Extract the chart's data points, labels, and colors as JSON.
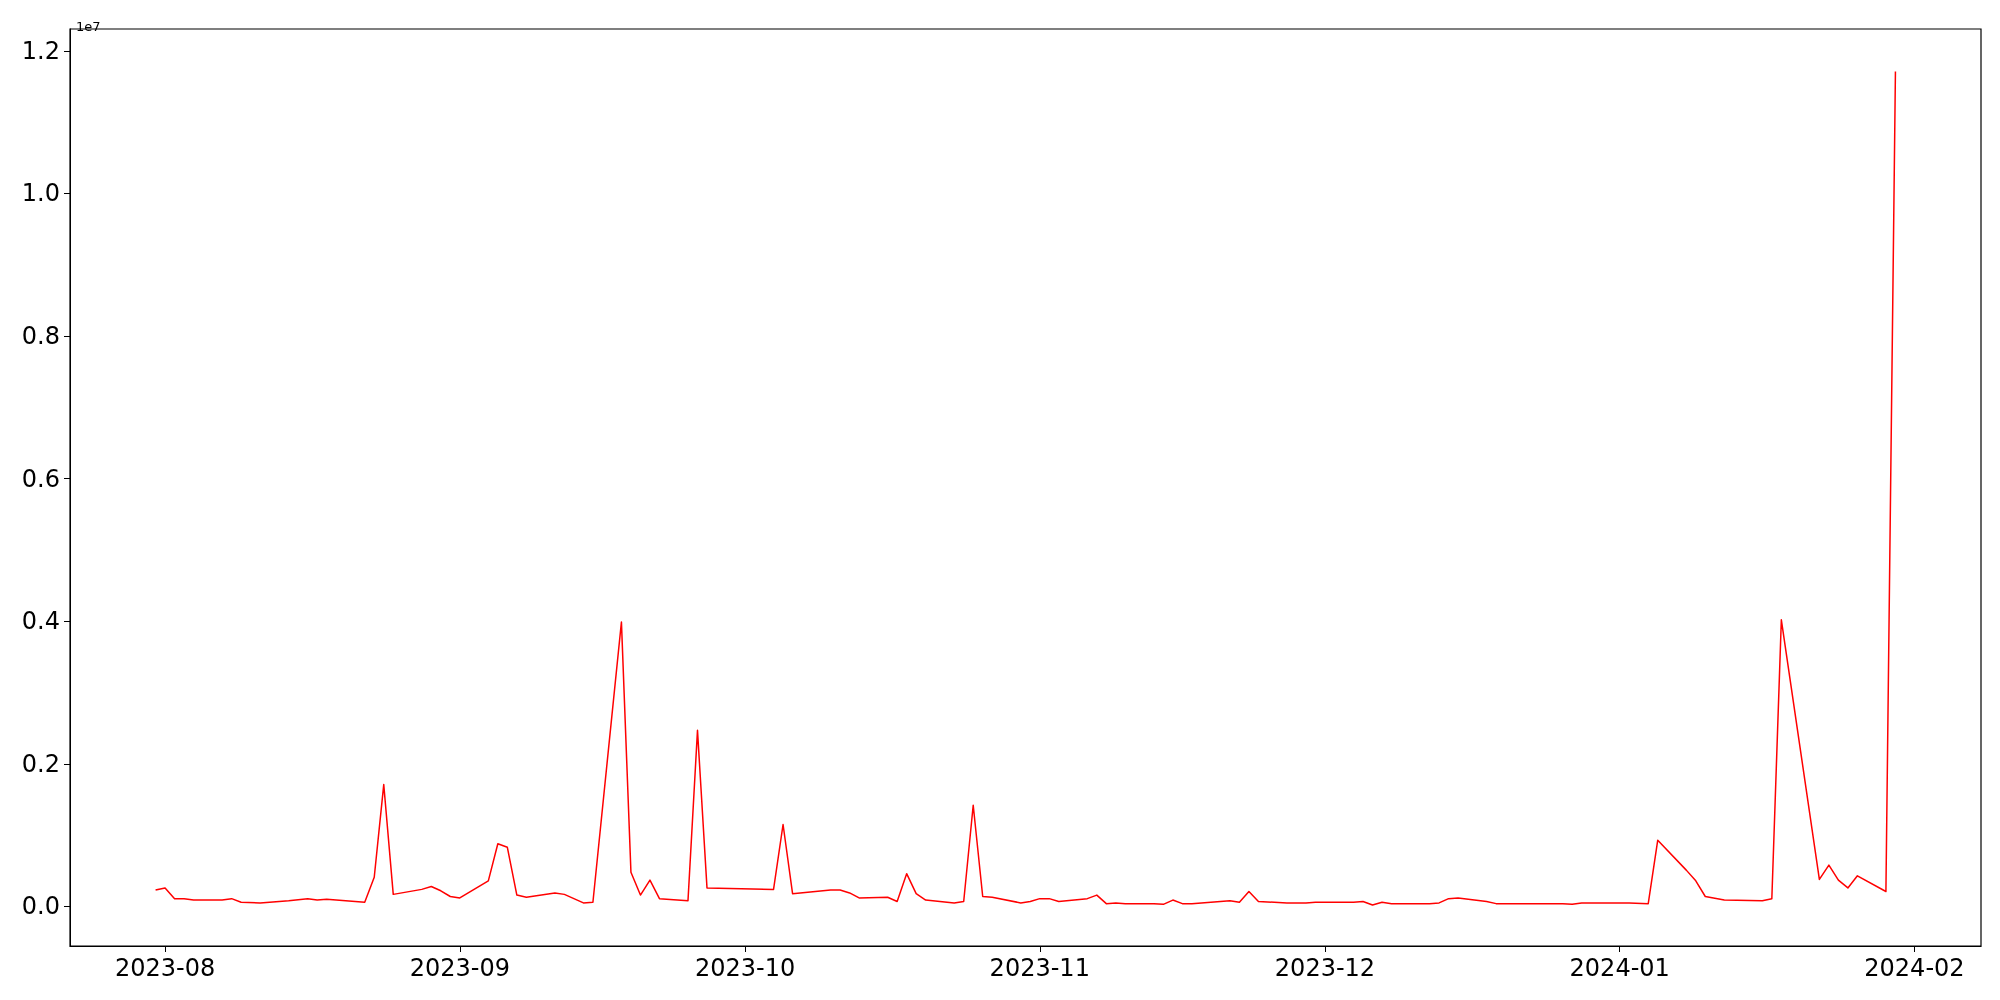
{
  "chart_data": {
    "type": "line",
    "annotations": [
      "1e7"
    ],
    "x": [
      "2023-07-31",
      "2023-08-01",
      "2023-08-02",
      "2023-08-03",
      "2023-08-04",
      "2023-08-07",
      "2023-08-08",
      "2023-08-09",
      "2023-08-11",
      "2023-08-14",
      "2023-08-16",
      "2023-08-17",
      "2023-08-18",
      "2023-08-22",
      "2023-08-23",
      "2023-08-24",
      "2023-08-25",
      "2023-08-28",
      "2023-08-29",
      "2023-08-30",
      "2023-08-31",
      "2023-09-01",
      "2023-09-04",
      "2023-09-05",
      "2023-09-06",
      "2023-09-07",
      "2023-09-08",
      "2023-09-11",
      "2023-09-12",
      "2023-09-14",
      "2023-09-15",
      "2023-09-18",
      "2023-09-19",
      "2023-09-20",
      "2023-09-21",
      "2023-09-22",
      "2023-09-25",
      "2023-09-26",
      "2023-09-27",
      "2023-10-04",
      "2023-10-05",
      "2023-10-06",
      "2023-10-10",
      "2023-10-11",
      "2023-10-12",
      "2023-10-13",
      "2023-10-16",
      "2023-10-17",
      "2023-10-18",
      "2023-10-19",
      "2023-10-20",
      "2023-10-23",
      "2023-10-24",
      "2023-10-25",
      "2023-10-26",
      "2023-10-27",
      "2023-10-30",
      "2023-10-31",
      "2023-11-01",
      "2023-11-02",
      "2023-11-03",
      "2023-11-06",
      "2023-11-07",
      "2023-11-08",
      "2023-11-09",
      "2023-11-10",
      "2023-11-13",
      "2023-11-14",
      "2023-11-15",
      "2023-11-16",
      "2023-11-17",
      "2023-11-20",
      "2023-11-21",
      "2023-11-22",
      "2023-11-23",
      "2023-11-24",
      "2023-11-27",
      "2023-11-29",
      "2023-11-30",
      "2023-12-04",
      "2023-12-05",
      "2023-12-06",
      "2023-12-07",
      "2023-12-08",
      "2023-12-11",
      "2023-12-12",
      "2023-12-13",
      "2023-12-14",
      "2023-12-15",
      "2023-12-18",
      "2023-12-19",
      "2023-12-20",
      "2023-12-21",
      "2023-12-22",
      "2023-12-26",
      "2023-12-27",
      "2023-12-28",
      "2023-12-29",
      "2024-01-02",
      "2024-01-04",
      "2024-01-05",
      "2024-01-08",
      "2024-01-09",
      "2024-01-10",
      "2024-01-12",
      "2024-01-16",
      "2024-01-17",
      "2024-01-18",
      "2024-01-22",
      "2024-01-23",
      "2024-01-24",
      "2024-01-25",
      "2024-01-26",
      "2024-01-29",
      "2024-01-30"
    ],
    "series": [
      {
        "color": "#ff0000",
        "values": [
          0.023,
          0.026,
          0.011,
          0.011,
          0.009,
          0.009,
          0.011,
          0.006,
          0.005,
          0.008,
          0.011,
          0.009,
          0.01,
          0.006,
          0.041,
          0.171,
          0.017,
          0.024,
          0.028,
          0.022,
          0.014,
          0.012,
          0.036,
          0.088,
          0.083,
          0.016,
          0.013,
          0.019,
          0.017,
          0.005,
          0.006,
          0.399,
          0.048,
          0.016,
          0.037,
          0.011,
          0.008,
          0.247,
          0.026,
          0.024,
          0.115,
          0.018,
          0.023,
          0.023,
          0.019,
          0.012,
          0.013,
          0.007,
          0.046,
          0.018,
          0.009,
          0.005,
          0.007,
          0.142,
          0.014,
          0.013,
          0.005,
          0.007,
          0.011,
          0.011,
          0.007,
          0.011,
          0.016,
          0.004,
          0.005,
          0.004,
          0.004,
          0.003,
          0.009,
          0.004,
          0.004,
          0.007,
          0.008,
          0.006,
          0.021,
          0.007,
          0.005,
          0.005,
          0.006,
          0.006,
          0.007,
          0.002,
          0.006,
          0.004,
          0.004,
          0.004,
          0.005,
          0.011,
          0.012,
          0.007,
          0.004,
          0.004,
          0.004,
          0.004,
          0.004,
          0.003,
          0.005,
          0.005,
          0.005,
          0.004,
          0.093,
          0.051,
          0.036,
          0.014,
          0.009,
          0.008,
          0.011,
          0.402,
          0.038,
          0.058,
          0.037,
          0.026,
          0.043,
          0.021,
          1.171
        ]
      }
    ],
    "xlim": [
      "2023-07-22",
      "2024-02-08"
    ],
    "xticks": [
      {
        "value": "2023-08-01",
        "label": "2023-08"
      },
      {
        "value": "2023-09-01",
        "label": "2023-09"
      },
      {
        "value": "2023-10-01",
        "label": "2023-10"
      },
      {
        "value": "2023-11-01",
        "label": "2023-11"
      },
      {
        "value": "2023-12-01",
        "label": "2023-12"
      },
      {
        "value": "2024-01-01",
        "label": "2024-01"
      },
      {
        "value": "2024-02-01",
        "label": "2024-02"
      }
    ],
    "ylim": [
      -0.0554,
      1.2305
    ],
    "yticks": [
      {
        "value": 0,
        "label": "0.0"
      },
      0.2,
      0.4,
      0.6,
      0.8,
      {
        "value": 1,
        "label": "1.0"
      },
      1.2
    ]
  }
}
